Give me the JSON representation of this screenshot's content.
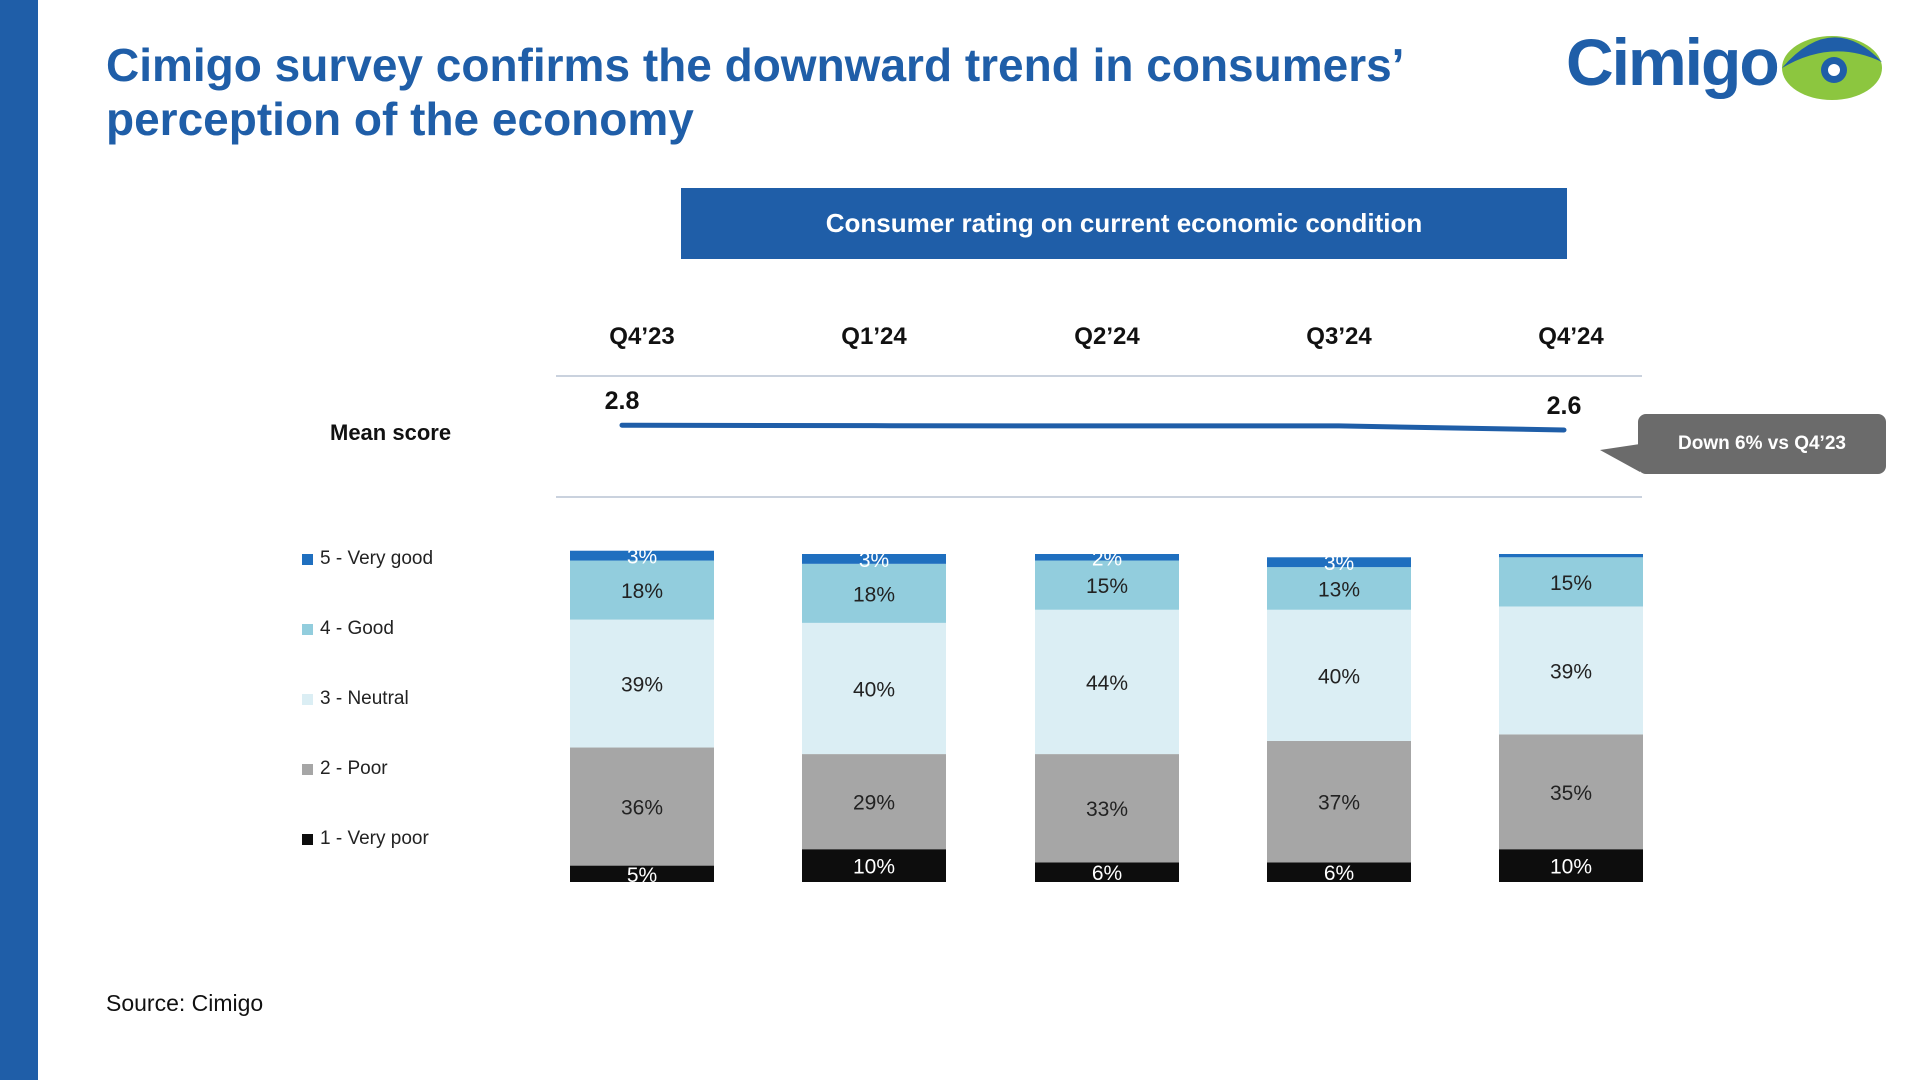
{
  "page": {
    "title": "Cimigo survey confirms the downward trend in consumers’ perception of the economy",
    "logo_text": "Cimigo",
    "source": "Source: Cimigo"
  },
  "callout": {
    "text": "Down 6% vs Q4’23"
  },
  "colors": {
    "brand": "#1f5ea8",
    "very_good": "#1f6fbf",
    "good": "#92cddd",
    "neutral": "#dbeef4",
    "poor": "#a6a6a6",
    "very_poor": "#0d0d0d",
    "logo_green": "#8cc63f",
    "line": "#1f5ea8"
  },
  "chart_data": {
    "type": "bar",
    "stacked": true,
    "normalized_percent": true,
    "title": "Consumer rating on current economic condition",
    "categories": [
      "Q4’23",
      "Q1’24",
      "Q2’24",
      "Q3’24",
      "Q4’24"
    ],
    "series": [
      {
        "name": "1 - Very poor",
        "key": "very_poor",
        "values": [
          5,
          10,
          6,
          6,
          10
        ],
        "labels": [
          "5%",
          "10%",
          "6%",
          "6%",
          "10%"
        ]
      },
      {
        "name": "2 - Poor",
        "key": "poor",
        "values": [
          36,
          29,
          33,
          37,
          35
        ],
        "labels": [
          "36%",
          "29%",
          "33%",
          "37%",
          "35%"
        ]
      },
      {
        "name": "3 - Neutral",
        "key": "neutral",
        "values": [
          39,
          40,
          44,
          40,
          39
        ],
        "labels": [
          "39%",
          "40%",
          "44%",
          "40%",
          "39%"
        ]
      },
      {
        "name": "4 - Good",
        "key": "good",
        "values": [
          18,
          18,
          15,
          13,
          15
        ],
        "labels": [
          "18%",
          "18%",
          "15%",
          "13%",
          "15%"
        ]
      },
      {
        "name": "5 - Very good",
        "key": "very_good",
        "values": [
          3,
          3,
          2,
          3,
          1
        ],
        "labels": [
          "3%",
          "3%",
          "2%",
          "3%",
          ""
        ]
      }
    ],
    "legend": [
      "5 - Very good",
      "4 - Good",
      "3 - Neutral",
      "2 - Poor",
      "1 - Very poor"
    ],
    "mean_score": {
      "label": "Mean score",
      "values": [
        2.8,
        2.78,
        2.77,
        2.77,
        2.6
      ],
      "shown_labels": [
        "2.8",
        "",
        "",
        "",
        "2.6"
      ]
    }
  }
}
